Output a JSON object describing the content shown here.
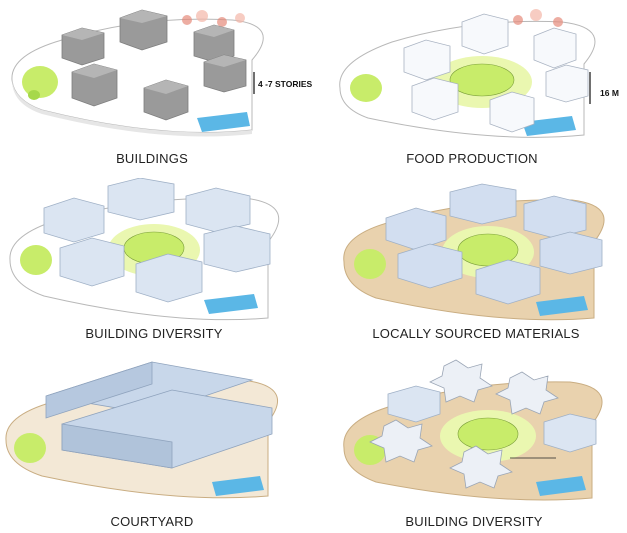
{
  "panels": [
    {
      "caption": "BUILDINGS",
      "annotation": "4 -7 STORIES"
    },
    {
      "caption": "FOOD PRODUCTION",
      "annotation": "16 M"
    },
    {
      "caption": "BUILDING DIVERSITY"
    },
    {
      "caption": "LOCALLY SOURCED MATERIALS"
    },
    {
      "caption": "COURTYARD"
    },
    {
      "caption": "BUILDING DIVERSITY"
    }
  ],
  "colors": {
    "grey_block": "#9a9a9a",
    "white_block": "#f7f9fc",
    "blue_block": "#c8d7ea",
    "green_dome": "#c8ec6a",
    "glow": "#eaf7b0",
    "sand": "#e9d2ae",
    "pool": "#5bb7e6",
    "coral": "#e68a7a"
  }
}
